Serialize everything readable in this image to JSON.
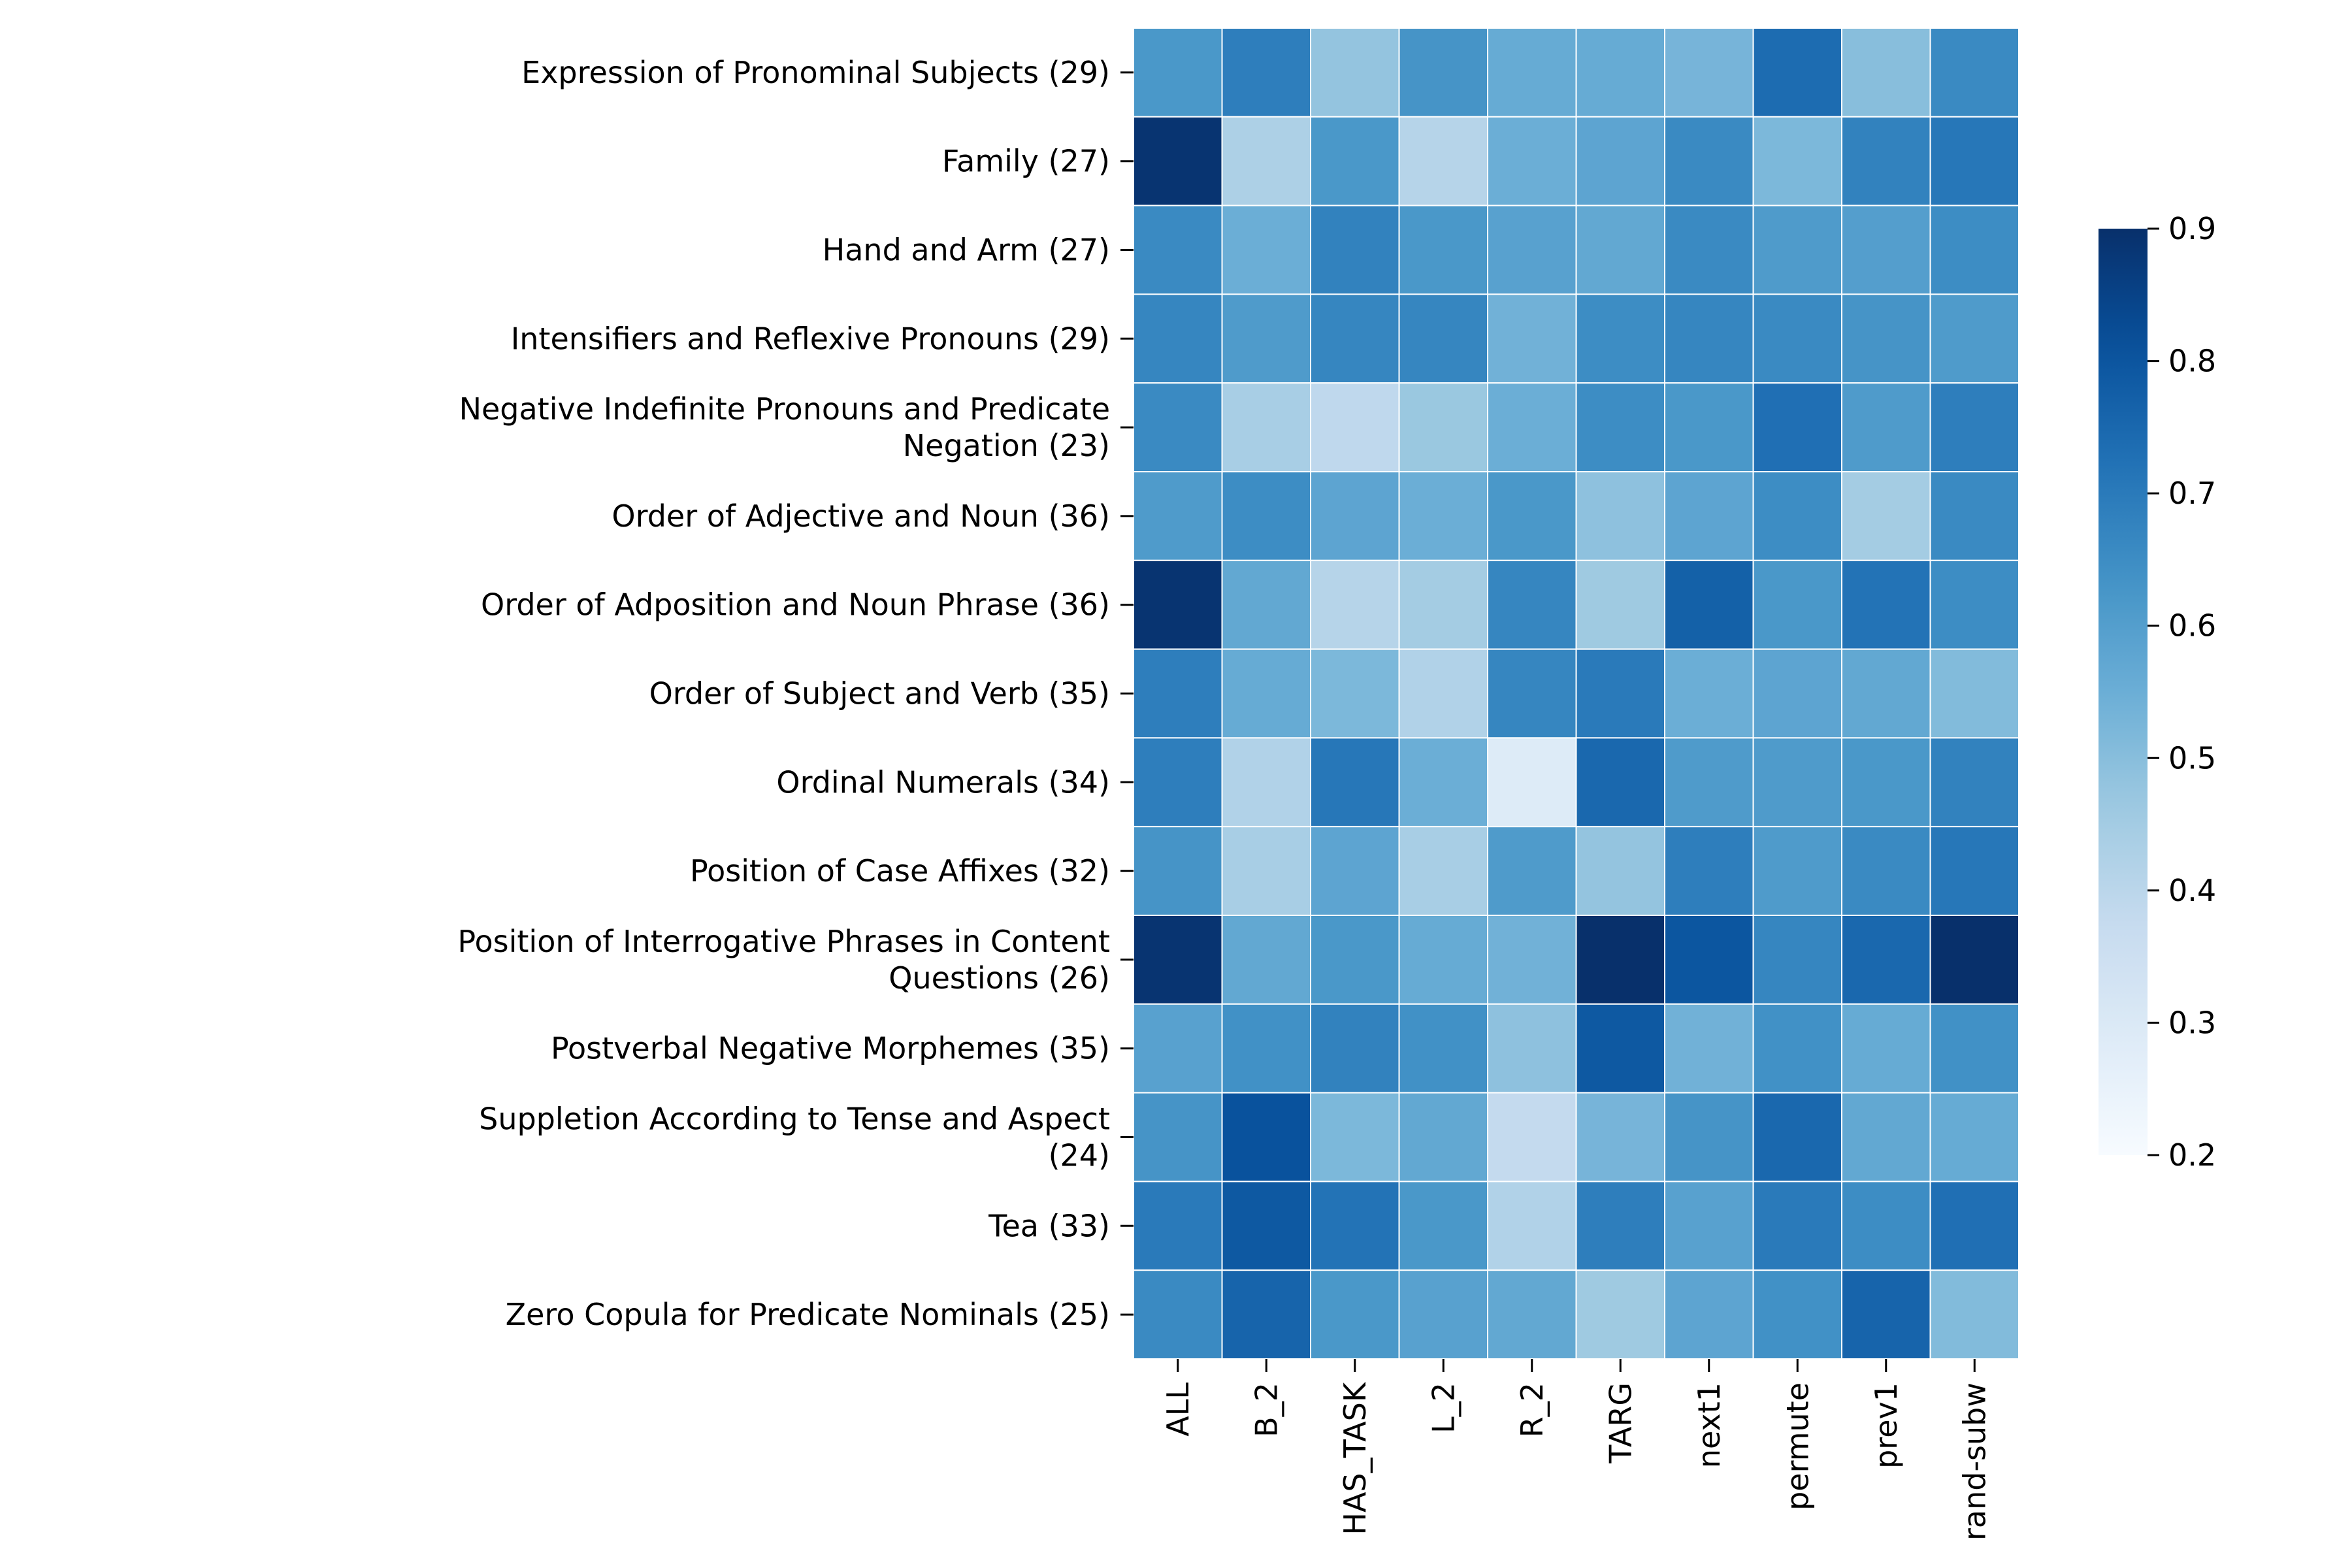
{
  "chart_data": {
    "type": "heatmap",
    "title": "",
    "xlabel": "",
    "ylabel": "",
    "x_categories": [
      "ALL",
      "B_2",
      "HAS_TASK",
      "L_2",
      "R_2",
      "TARG",
      "next1",
      "permute",
      "prev1",
      "rand-subw"
    ],
    "y_categories": [
      "Expression of Pronominal Subjects (29)",
      "Family (27)",
      "Hand and Arm (27)",
      "Intensifiers and Reflexive Pronouns (29)",
      "Negative Indefinite Pronouns and Predicate Negation (23)",
      "Order of Adjective and Noun (36)",
      "Order of Adposition and Noun Phrase (36)",
      "Order of Subject and Verb (35)",
      "Ordinal Numerals (34)",
      "Position of Case Affixes (32)",
      "Position of Interrogative Phrases in Content Questions (26)",
      "Postverbal Negative Morphemes (35)",
      "Suppletion According to Tense and Aspect (24)",
      "Tea (33)",
      "Zero Copula for Predicate Nominals (25)"
    ],
    "y_tick_lines": [
      [
        "Expression of Pronominal Subjects (29)"
      ],
      [
        "Family (27)"
      ],
      [
        "Hand and Arm (27)"
      ],
      [
        "Intensifiers and Reflexive Pronouns (29)"
      ],
      [
        "Negative Indefinite Pronouns and Predicate",
        "Negation (23)"
      ],
      [
        "Order of Adjective and Noun (36)"
      ],
      [
        "Order of Adposition and Noun Phrase (36)"
      ],
      [
        "Order of Subject and Verb (35)"
      ],
      [
        "Ordinal Numerals (34)"
      ],
      [
        "Position of Case Affixes (32)"
      ],
      [
        "Position of Interrogative Phrases in Content",
        "Questions (26)"
      ],
      [
        "Postverbal Negative Morphemes (35)"
      ],
      [
        "Suppletion According to Tense and Aspect",
        "(24)"
      ],
      [
        "Tea (33)"
      ],
      [
        "Zero Copula for Predicate Nominals (25)"
      ]
    ],
    "values": [
      [
        0.62,
        0.69,
        0.48,
        0.63,
        0.56,
        0.56,
        0.53,
        0.74,
        0.5,
        0.66
      ],
      [
        0.89,
        0.43,
        0.62,
        0.41,
        0.55,
        0.58,
        0.66,
        0.52,
        0.68,
        0.71
      ],
      [
        0.66,
        0.55,
        0.68,
        0.62,
        0.59,
        0.57,
        0.66,
        0.61,
        0.6,
        0.65
      ],
      [
        0.67,
        0.61,
        0.67,
        0.67,
        0.54,
        0.65,
        0.67,
        0.66,
        0.63,
        0.61
      ],
      [
        0.66,
        0.44,
        0.39,
        0.47,
        0.55,
        0.65,
        0.62,
        0.73,
        0.61,
        0.69
      ],
      [
        0.61,
        0.65,
        0.58,
        0.55,
        0.62,
        0.49,
        0.58,
        0.65,
        0.45,
        0.66
      ],
      [
        0.89,
        0.57,
        0.41,
        0.45,
        0.67,
        0.46,
        0.77,
        0.62,
        0.72,
        0.65
      ],
      [
        0.69,
        0.56,
        0.52,
        0.42,
        0.67,
        0.7,
        0.55,
        0.58,
        0.57,
        0.51
      ],
      [
        0.69,
        0.42,
        0.71,
        0.55,
        0.29,
        0.75,
        0.61,
        0.61,
        0.62,
        0.68
      ],
      [
        0.63,
        0.44,
        0.58,
        0.44,
        0.61,
        0.48,
        0.69,
        0.61,
        0.66,
        0.71
      ],
      [
        0.89,
        0.57,
        0.62,
        0.56,
        0.54,
        0.9,
        0.8,
        0.67,
        0.75,
        0.9
      ],
      [
        0.59,
        0.64,
        0.68,
        0.64,
        0.49,
        0.79,
        0.54,
        0.64,
        0.56,
        0.64
      ],
      [
        0.63,
        0.81,
        0.52,
        0.57,
        0.38,
        0.53,
        0.63,
        0.75,
        0.57,
        0.56
      ],
      [
        0.7,
        0.79,
        0.72,
        0.62,
        0.42,
        0.69,
        0.59,
        0.7,
        0.65,
        0.73
      ],
      [
        0.66,
        0.76,
        0.62,
        0.59,
        0.57,
        0.46,
        0.58,
        0.64,
        0.76,
        0.51
      ]
    ],
    "colorbar": {
      "cmap": "Blues",
      "vmin": 0.2,
      "vmax": 0.9,
      "ticks": [
        "0.2",
        "0.3",
        "0.4",
        "0.5",
        "0.6",
        "0.7",
        "0.8",
        "0.9"
      ]
    },
    "grid": "white cell borders",
    "legend": "colorbar right"
  }
}
